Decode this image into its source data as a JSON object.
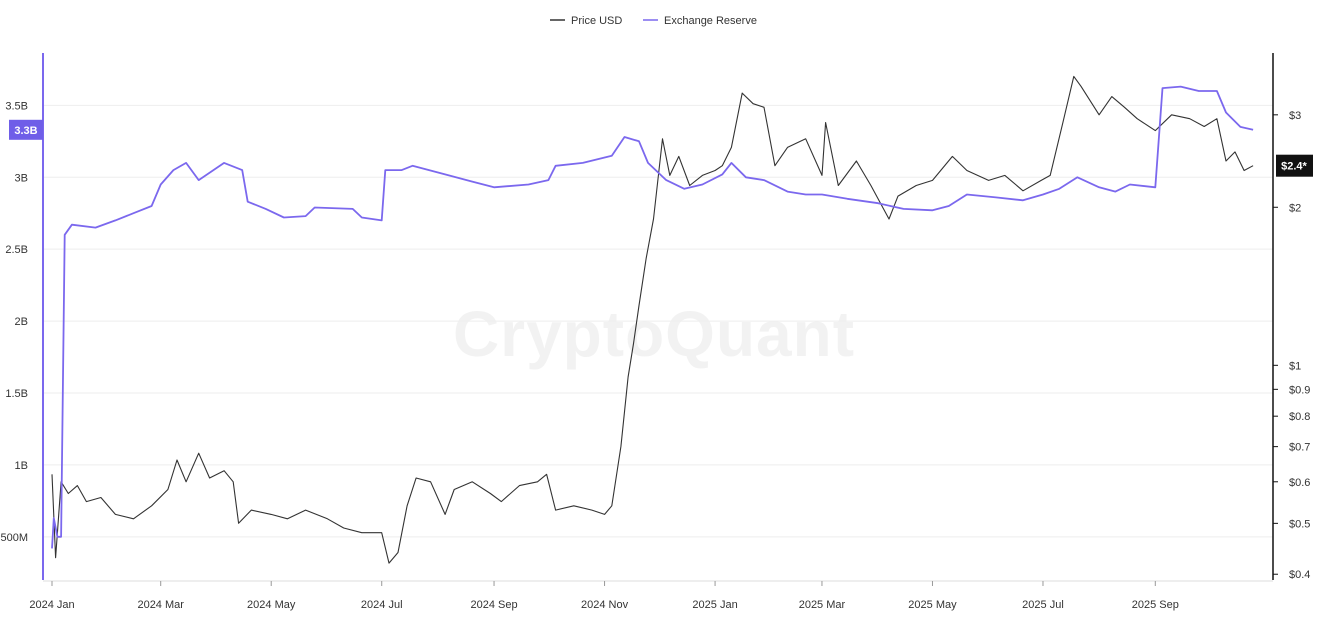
{
  "chart_data": {
    "type": "line",
    "watermark": "CryptoQuant",
    "x_axis": {
      "ticks": [
        "2024 Jan",
        "2024 Mar",
        "2024 May",
        "2024 Jul",
        "2024 Sep",
        "2024 Nov",
        "2025 Jan",
        "2025 Mar",
        "2025 May",
        "2025 Jul",
        "2025 Sep"
      ],
      "range": [
        "2024-01-01",
        "2025-10-31"
      ]
    },
    "y_left": {
      "ticks": [
        "500M",
        "1B",
        "1.5B",
        "2B",
        "2.5B",
        "3B",
        "3.5B"
      ],
      "tick_values": [
        0.5,
        1.0,
        1.5,
        2.0,
        2.5,
        3.0,
        3.5
      ],
      "range": [
        0.2,
        3.85
      ],
      "unit": "billions"
    },
    "y_right": {
      "ticks": [
        "$0.4",
        "$0.5",
        "$0.6",
        "$0.7",
        "$0.8",
        "$0.9",
        "$1",
        "$2",
        "$3"
      ],
      "tick_values": [
        0.4,
        0.5,
        0.6,
        0.7,
        0.8,
        0.9,
        1,
        2,
        3
      ],
      "scale": "log",
      "range": [
        0.39,
        3.9
      ]
    },
    "grid": true,
    "legend_position": "top-center",
    "current_reserve_label": "3.3B",
    "current_price_label": "$2.4*",
    "colors": {
      "price": "#333333",
      "reserve": "#7b68ee",
      "badge_reserve": "#6f5ee8",
      "badge_price": "#111111"
    },
    "series": [
      {
        "name": "Price USD",
        "axis": "right",
        "points": [
          [
            "2024-01-01",
            0.62
          ],
          [
            "2024-01-03",
            0.43
          ],
          [
            "2024-01-06",
            0.6
          ],
          [
            "2024-01-10",
            0.57
          ],
          [
            "2024-01-15",
            0.59
          ],
          [
            "2024-01-20",
            0.55
          ],
          [
            "2024-01-28",
            0.56
          ],
          [
            "2024-02-05",
            0.52
          ],
          [
            "2024-02-15",
            0.51
          ],
          [
            "2024-02-25",
            0.54
          ],
          [
            "2024-03-05",
            0.58
          ],
          [
            "2024-03-10",
            0.66
          ],
          [
            "2024-03-15",
            0.6
          ],
          [
            "2024-03-22",
            0.68
          ],
          [
            "2024-03-28",
            0.61
          ],
          [
            "2024-04-05",
            0.63
          ],
          [
            "2024-04-10",
            0.6
          ],
          [
            "2024-04-13",
            0.5
          ],
          [
            "2024-04-20",
            0.53
          ],
          [
            "2024-05-01",
            0.52
          ],
          [
            "2024-05-10",
            0.51
          ],
          [
            "2024-05-20",
            0.53
          ],
          [
            "2024-06-01",
            0.51
          ],
          [
            "2024-06-10",
            0.49
          ],
          [
            "2024-06-20",
            0.48
          ],
          [
            "2024-07-01",
            0.48
          ],
          [
            "2024-07-05",
            0.42
          ],
          [
            "2024-07-10",
            0.44
          ],
          [
            "2024-07-15",
            0.54
          ],
          [
            "2024-07-20",
            0.61
          ],
          [
            "2024-07-28",
            0.6
          ],
          [
            "2024-08-05",
            0.52
          ],
          [
            "2024-08-10",
            0.58
          ],
          [
            "2024-08-20",
            0.6
          ],
          [
            "2024-08-30",
            0.57
          ],
          [
            "2024-09-05",
            0.55
          ],
          [
            "2024-09-15",
            0.59
          ],
          [
            "2024-09-25",
            0.6
          ],
          [
            "2024-09-30",
            0.62
          ],
          [
            "2024-10-05",
            0.53
          ],
          [
            "2024-10-15",
            0.54
          ],
          [
            "2024-10-25",
            0.53
          ],
          [
            "2024-11-01",
            0.52
          ],
          [
            "2024-11-05",
            0.54
          ],
          [
            "2024-11-10",
            0.7
          ],
          [
            "2024-11-14",
            0.95
          ],
          [
            "2024-11-17",
            1.1
          ],
          [
            "2024-11-20",
            1.3
          ],
          [
            "2024-11-24",
            1.6
          ],
          [
            "2024-11-28",
            1.9
          ],
          [
            "2024-12-03",
            2.7
          ],
          [
            "2024-12-07",
            2.3
          ],
          [
            "2024-12-12",
            2.5
          ],
          [
            "2024-12-18",
            2.2
          ],
          [
            "2024-12-25",
            2.3
          ],
          [
            "2025-01-01",
            2.35
          ],
          [
            "2025-01-05",
            2.4
          ],
          [
            "2025-01-10",
            2.6
          ],
          [
            "2025-01-16",
            3.3
          ],
          [
            "2025-01-22",
            3.15
          ],
          [
            "2025-01-28",
            3.1
          ],
          [
            "2025-02-03",
            2.4
          ],
          [
            "2025-02-10",
            2.6
          ],
          [
            "2025-02-20",
            2.7
          ],
          [
            "2025-03-01",
            2.3
          ],
          [
            "2025-03-03",
            2.9
          ],
          [
            "2025-03-10",
            2.2
          ],
          [
            "2025-03-20",
            2.45
          ],
          [
            "2025-03-28",
            2.2
          ],
          [
            "2025-04-07",
            1.9
          ],
          [
            "2025-04-12",
            2.1
          ],
          [
            "2025-04-22",
            2.2
          ],
          [
            "2025-05-01",
            2.25
          ],
          [
            "2025-05-12",
            2.5
          ],
          [
            "2025-05-20",
            2.35
          ],
          [
            "2025-06-01",
            2.25
          ],
          [
            "2025-06-10",
            2.3
          ],
          [
            "2025-06-20",
            2.15
          ],
          [
            "2025-06-30",
            2.25
          ],
          [
            "2025-07-05",
            2.3
          ],
          [
            "2025-07-12",
            2.9
          ],
          [
            "2025-07-18",
            3.55
          ],
          [
            "2025-07-22",
            3.4
          ],
          [
            "2025-08-01",
            3.0
          ],
          [
            "2025-08-08",
            3.25
          ],
          [
            "2025-08-15",
            3.1
          ],
          [
            "2025-08-22",
            2.95
          ],
          [
            "2025-09-01",
            2.8
          ],
          [
            "2025-09-10",
            3.0
          ],
          [
            "2025-09-20",
            2.95
          ],
          [
            "2025-09-28",
            2.85
          ],
          [
            "2025-10-05",
            2.95
          ],
          [
            "2025-10-10",
            2.45
          ],
          [
            "2025-10-15",
            2.55
          ],
          [
            "2025-10-20",
            2.35
          ],
          [
            "2025-10-25",
            2.4
          ]
        ]
      },
      {
        "name": "Exchange Reserve",
        "axis": "left",
        "points": [
          [
            "2024-01-01",
            0.42
          ],
          [
            "2024-01-02",
            0.63
          ],
          [
            "2024-01-04",
            0.5
          ],
          [
            "2024-01-06",
            0.5
          ],
          [
            "2024-01-08",
            2.6
          ],
          [
            "2024-01-12",
            2.67
          ],
          [
            "2024-01-25",
            2.65
          ],
          [
            "2024-02-05",
            2.7
          ],
          [
            "2024-02-15",
            2.75
          ],
          [
            "2024-02-25",
            2.8
          ],
          [
            "2024-03-01",
            2.95
          ],
          [
            "2024-03-08",
            3.05
          ],
          [
            "2024-03-15",
            3.1
          ],
          [
            "2024-03-22",
            2.98
          ],
          [
            "2024-04-05",
            3.1
          ],
          [
            "2024-04-15",
            3.05
          ],
          [
            "2024-04-18",
            2.83
          ],
          [
            "2024-04-28",
            2.78
          ],
          [
            "2024-05-08",
            2.72
          ],
          [
            "2024-05-20",
            2.73
          ],
          [
            "2024-05-25",
            2.79
          ],
          [
            "2024-06-15",
            2.78
          ],
          [
            "2024-06-20",
            2.72
          ],
          [
            "2024-07-01",
            2.7
          ],
          [
            "2024-07-03",
            3.05
          ],
          [
            "2024-07-12",
            3.05
          ],
          [
            "2024-07-18",
            3.08
          ],
          [
            "2024-08-05",
            3.02
          ],
          [
            "2024-08-20",
            2.97
          ],
          [
            "2024-09-01",
            2.93
          ],
          [
            "2024-09-20",
            2.95
          ],
          [
            "2024-10-01",
            2.98
          ],
          [
            "2024-10-05",
            3.08
          ],
          [
            "2024-10-20",
            3.1
          ],
          [
            "2024-11-05",
            3.15
          ],
          [
            "2024-11-12",
            3.28
          ],
          [
            "2024-11-20",
            3.25
          ],
          [
            "2024-11-25",
            3.1
          ],
          [
            "2024-12-05",
            2.98
          ],
          [
            "2024-12-15",
            2.92
          ],
          [
            "2024-12-25",
            2.95
          ],
          [
            "2025-01-05",
            3.02
          ],
          [
            "2025-01-10",
            3.1
          ],
          [
            "2025-01-18",
            3.0
          ],
          [
            "2025-01-28",
            2.98
          ],
          [
            "2025-02-10",
            2.9
          ],
          [
            "2025-02-20",
            2.88
          ],
          [
            "2025-03-01",
            2.88
          ],
          [
            "2025-03-15",
            2.85
          ],
          [
            "2025-04-01",
            2.82
          ],
          [
            "2025-04-15",
            2.78
          ],
          [
            "2025-05-01",
            2.77
          ],
          [
            "2025-05-10",
            2.8
          ],
          [
            "2025-05-20",
            2.88
          ],
          [
            "2025-06-05",
            2.86
          ],
          [
            "2025-06-20",
            2.84
          ],
          [
            "2025-07-01",
            2.88
          ],
          [
            "2025-07-10",
            2.92
          ],
          [
            "2025-07-20",
            3.0
          ],
          [
            "2025-08-01",
            2.93
          ],
          [
            "2025-08-10",
            2.9
          ],
          [
            "2025-08-18",
            2.95
          ],
          [
            "2025-09-01",
            2.93
          ],
          [
            "2025-09-05",
            3.62
          ],
          [
            "2025-09-15",
            3.63
          ],
          [
            "2025-09-25",
            3.6
          ],
          [
            "2025-10-05",
            3.6
          ],
          [
            "2025-10-10",
            3.45
          ],
          [
            "2025-10-18",
            3.35
          ],
          [
            "2025-10-25",
            3.33
          ]
        ]
      }
    ]
  }
}
